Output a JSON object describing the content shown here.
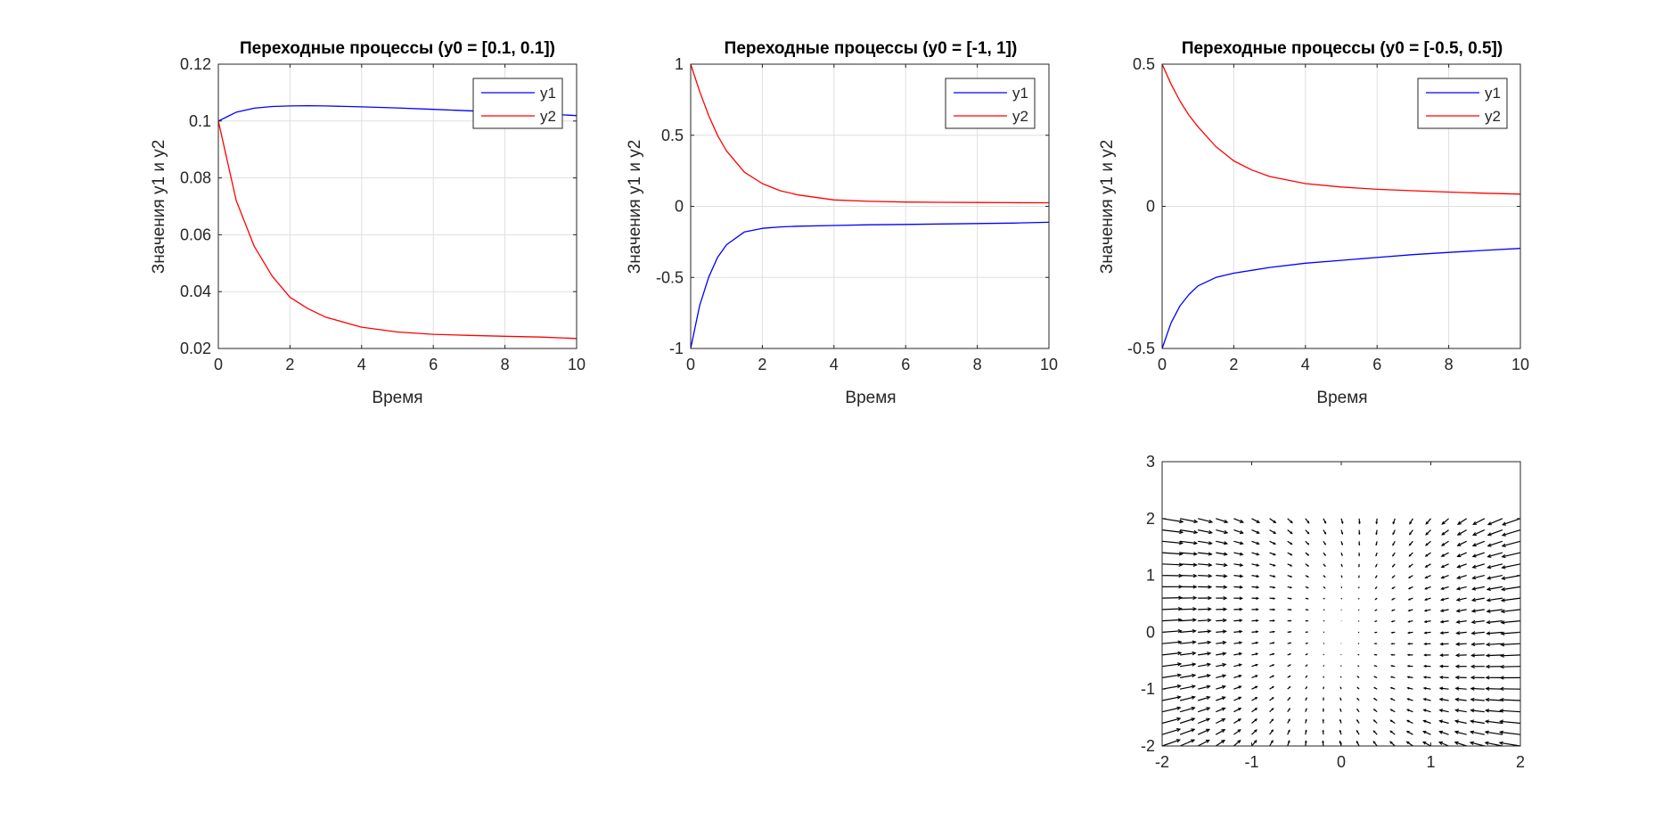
{
  "figure": {
    "background": "#ffffff",
    "colors": {
      "y1": "#0000ff",
      "y2": "#ff0000",
      "axis": "#262626",
      "grid": "#dfdfdf",
      "quiver": "#000000"
    }
  },
  "chart_data": [
    {
      "type": "line",
      "title": "Переходные процессы (y0 = [0.1, 0.1])",
      "xlabel": "Время",
      "ylabel": "Значения y1 и y2",
      "xlim": [
        0,
        10
      ],
      "ylim": [
        0.02,
        0.12
      ],
      "xticks": [
        0,
        2,
        4,
        6,
        8,
        10
      ],
      "xtick_labels": [
        "0",
        "2",
        "4",
        "6",
        "8",
        "10"
      ],
      "yticks": [
        0.02,
        0.04,
        0.06,
        0.08,
        0.1,
        0.12
      ],
      "ytick_labels": [
        "0.02",
        "0.04",
        "0.06",
        "0.08",
        "0.1",
        "0.12"
      ],
      "grid": true,
      "legend": "top-right",
      "x": [
        0,
        0.5,
        1,
        1.5,
        2,
        2.5,
        3,
        4,
        5,
        6,
        7,
        8,
        9,
        10
      ],
      "series": [
        {
          "name": "y1",
          "color": "#0000ff",
          "values": [
            0.1,
            0.1031,
            0.1045,
            0.1051,
            0.1053,
            0.1054,
            0.1053,
            0.105,
            0.1046,
            0.1041,
            0.1036,
            0.1031,
            0.1026,
            0.1019
          ]
        },
        {
          "name": "y2",
          "color": "#ff0000",
          "values": [
            0.1,
            0.072,
            0.056,
            0.0455,
            0.038,
            0.034,
            0.031,
            0.0275,
            0.0258,
            0.025,
            0.0246,
            0.0243,
            0.024,
            0.0235
          ]
        }
      ]
    },
    {
      "type": "line",
      "title": "Переходные процессы (y0 = [-1, 1])",
      "xlabel": "Время",
      "ylabel": "Значения y1 и y2",
      "xlim": [
        0,
        10
      ],
      "ylim": [
        -1,
        1
      ],
      "xticks": [
        0,
        2,
        4,
        6,
        8,
        10
      ],
      "xtick_labels": [
        "0",
        "2",
        "4",
        "6",
        "8",
        "10"
      ],
      "yticks": [
        -1,
        -0.5,
        0,
        0.5,
        1
      ],
      "ytick_labels": [
        "-1",
        "-0.5",
        "0",
        "0.5",
        "1"
      ],
      "grid": true,
      "legend": "top-right",
      "x": [
        0,
        0.25,
        0.5,
        0.75,
        1,
        1.5,
        2,
        2.5,
        3,
        4,
        5,
        6,
        7,
        8,
        9,
        10
      ],
      "series": [
        {
          "name": "y1",
          "color": "#0000ff",
          "values": [
            -1,
            -0.7,
            -0.5,
            -0.36,
            -0.27,
            -0.18,
            -0.155,
            -0.145,
            -0.14,
            -0.135,
            -0.13,
            -0.127,
            -0.124,
            -0.121,
            -0.118,
            -0.112
          ]
        },
        {
          "name": "y2",
          "color": "#ff0000",
          "values": [
            1,
            0.81,
            0.64,
            0.5,
            0.39,
            0.24,
            0.16,
            0.11,
            0.08,
            0.045,
            0.035,
            0.03,
            0.028,
            0.027,
            0.026,
            0.025
          ]
        }
      ]
    },
    {
      "type": "line",
      "title": "Переходные процессы (y0 = [-0.5, 0.5])",
      "xlabel": "Время",
      "ylabel": "Значения y1 и y2",
      "xlim": [
        0,
        10
      ],
      "ylim": [
        -0.5,
        0.5
      ],
      "xticks": [
        0,
        2,
        4,
        6,
        8,
        10
      ],
      "xtick_labels": [
        "0",
        "2",
        "4",
        "6",
        "8",
        "10"
      ],
      "yticks": [
        -0.5,
        0,
        0.5
      ],
      "ytick_labels": [
        "-0.5",
        "0",
        "0.5"
      ],
      "grid": true,
      "legend": "top-right",
      "x": [
        0,
        0.25,
        0.5,
        0.75,
        1,
        1.5,
        2,
        2.5,
        3,
        4,
        5,
        6,
        7,
        8,
        9,
        10
      ],
      "series": [
        {
          "name": "y1",
          "color": "#0000ff",
          "values": [
            -0.5,
            -0.41,
            -0.35,
            -0.31,
            -0.28,
            -0.25,
            -0.235,
            -0.225,
            -0.215,
            -0.2,
            -0.19,
            -0.18,
            -0.17,
            -0.162,
            -0.155,
            -0.148
          ]
        },
        {
          "name": "y2",
          "color": "#ff0000",
          "values": [
            0.5,
            0.43,
            0.37,
            0.32,
            0.28,
            0.21,
            0.16,
            0.128,
            0.105,
            0.08,
            0.068,
            0.06,
            0.055,
            0.05,
            0.046,
            0.043
          ]
        }
      ]
    },
    {
      "type": "quiver",
      "title": "",
      "xlabel": "",
      "ylabel": "",
      "xlim": [
        -2,
        2
      ],
      "ylim": [
        -2,
        3
      ],
      "xticks": [
        -2,
        -1,
        0,
        1,
        2
      ],
      "xtick_labels": [
        "-2",
        "-1",
        "0",
        "1",
        "2"
      ],
      "yticks": [
        -2,
        -1,
        0,
        1,
        2,
        3
      ],
      "ytick_labels": [
        "-2",
        "-1",
        "0",
        "1",
        "2",
        "3"
      ],
      "grid": false,
      "color": "#000000",
      "x_range": [
        -2,
        2
      ],
      "y_range": [
        -2,
        2
      ],
      "grid_points": 21
    }
  ]
}
